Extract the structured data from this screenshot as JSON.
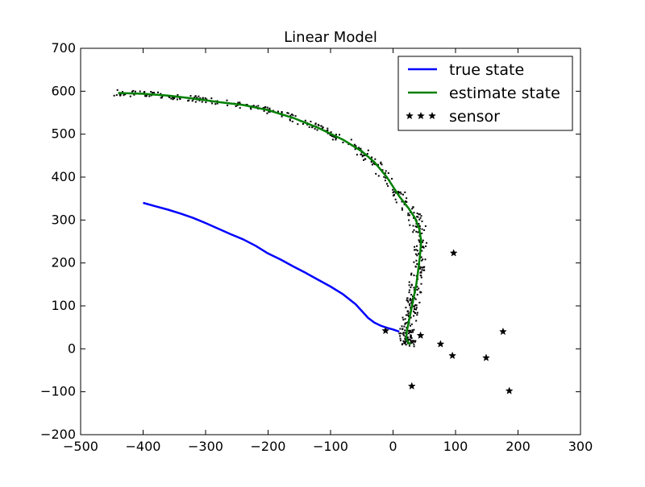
{
  "chart_data": {
    "type": "line",
    "title": "Linear Model",
    "xlabel": "",
    "ylabel": "",
    "xlim": [
      -500,
      300
    ],
    "ylim": [
      -200,
      700
    ],
    "xticks": [
      "−500",
      "−400",
      "−300",
      "−200",
      "−100",
      "0",
      "100",
      "200",
      "300"
    ],
    "yticks": [
      "−200",
      "−100",
      "0",
      "100",
      "200",
      "300",
      "400",
      "500",
      "600",
      "700"
    ],
    "xtick_values": [
      -500,
      -400,
      -300,
      -200,
      -100,
      0,
      100,
      200,
      300
    ],
    "ytick_values": [
      -200,
      -100,
      0,
      100,
      200,
      300,
      400,
      500,
      600,
      700
    ],
    "grid": false,
    "legend_position": "top-right",
    "legend": [
      "true state",
      "estimate state",
      "sensor"
    ],
    "series": [
      {
        "name": "true state",
        "color": "#0000ff",
        "style": "line",
        "x": [
          -400,
          -380,
          -360,
          -340,
          -320,
          -300,
          -280,
          -260,
          -240,
          -220,
          -200,
          -180,
          -160,
          -140,
          -120,
          -100,
          -80,
          -60,
          -50,
          -40,
          -30,
          -20,
          -10,
          0,
          10
        ],
        "y": [
          340,
          332,
          324,
          315,
          305,
          293,
          280,
          267,
          255,
          240,
          222,
          208,
          192,
          177,
          161,
          145,
          127,
          104,
          88,
          72,
          61,
          54,
          49,
          45,
          40
        ]
      },
      {
        "name": "estimate state",
        "color": "#008000",
        "style": "line",
        "x": [
          -440,
          -400,
          -360,
          -320,
          -280,
          -240,
          -200,
          -160,
          -120,
          -80,
          -50,
          -30,
          -10,
          10,
          25,
          35,
          42,
          45,
          43,
          40,
          37,
          33,
          29,
          25,
          22,
          21,
          24,
          28
        ],
        "y": [
          596,
          594,
          590,
          583,
          575,
          568,
          556,
          538,
          515,
          487,
          460,
          435,
          400,
          355,
          327,
          305,
          280,
          250,
          215,
          180,
          148,
          120,
          90,
          62,
          40,
          25,
          15,
          10
        ]
      },
      {
        "name": "sensor",
        "color": "#000000",
        "style": "markers",
        "marker": "star",
        "x": [
          97,
          176,
          -12,
          44,
          76,
          95,
          149,
          186,
          30
        ],
        "y": [
          223,
          40,
          42,
          31,
          11,
          -16,
          -21,
          -98,
          -87
        ]
      }
    ],
    "particles_cloud": {
      "color": "#000000",
      "style": "dots",
      "description_free": true
    }
  }
}
